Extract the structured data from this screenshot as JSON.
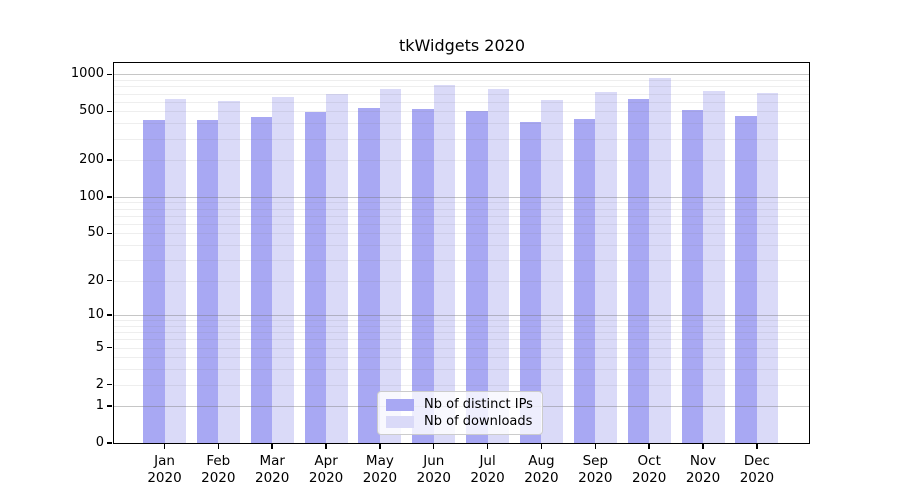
{
  "chart_data": {
    "type": "bar",
    "title": "tkWidgets 2020",
    "categories": [
      "Jan",
      "Feb",
      "Mar",
      "Apr",
      "May",
      "Jun",
      "Jul",
      "Aug",
      "Sep",
      "Oct",
      "Nov",
      "Dec"
    ],
    "x_tick_second_line": "2020",
    "series": [
      {
        "name": "Nb of distinct IPs",
        "color": "#a8a8f3",
        "values": [
          425,
          425,
          450,
          495,
          530,
          520,
          505,
          410,
          435,
          635,
          510,
          455
        ]
      },
      {
        "name": "Nb of downloads",
        "color": "#dadaf8",
        "values": [
          635,
          605,
          650,
          695,
          760,
          815,
          755,
          625,
          725,
          940,
          740,
          705
        ]
      }
    ],
    "yscale": "log1p",
    "y_ticks": [
      0,
      1,
      2,
      5,
      10,
      20,
      50,
      100,
      200,
      500,
      1000
    ],
    "y_tick_labels": [
      "0",
      "1",
      "2",
      "5",
      "10",
      "20",
      "50",
      "100",
      "200",
      "500",
      "1000"
    ],
    "y_major_gridlines": [
      1,
      10,
      100,
      1000
    ],
    "y_minor_gridlines": [
      2,
      3,
      4,
      5,
      6,
      7,
      8,
      9,
      20,
      30,
      40,
      50,
      60,
      70,
      80,
      90,
      200,
      300,
      400,
      500,
      600,
      700,
      800,
      900
    ],
    "ylim": [
      0,
      1260
    ],
    "grid": "horizontal, drawn above bars",
    "legend_position": "lower center inside axes",
    "xlabel": "",
    "ylabel": ""
  }
}
